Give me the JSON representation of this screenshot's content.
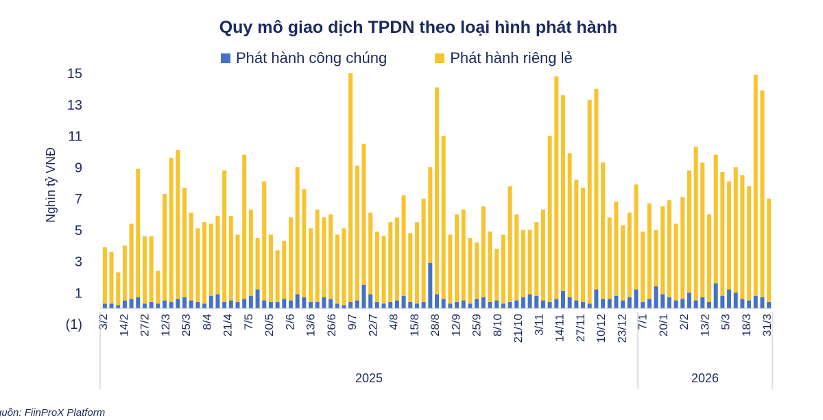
{
  "source_note": "guồn: FiinProX Platform",
  "colors": {
    "public": "#4472c4",
    "private": "#f7c32e",
    "text": "#1b2a5e",
    "axis": "#bfbfbf"
  },
  "chart_data": {
    "type": "bar",
    "stacked": true,
    "title": "Quy mô giao dịch TPDN theo loại hình phát hành",
    "ylabel": "Nghìn tỷ VNĐ",
    "xlabel": "",
    "ylim": [
      -1,
      15
    ],
    "yticks": [
      "(1)",
      "1",
      "3",
      "5",
      "7",
      "9",
      "11",
      "13",
      "15"
    ],
    "ytick_values": [
      -1,
      1,
      3,
      5,
      7,
      9,
      11,
      13,
      15
    ],
    "grid": false,
    "legend_position": "top",
    "x_tick_labels": [
      "3/2",
      "14/2",
      "27/2",
      "12/3",
      "25/3",
      "8/4",
      "21/4",
      "7/5",
      "20/5",
      "2/6",
      "13/6",
      "26/6",
      "9/7",
      "22/7",
      "4/8",
      "15/8",
      "28/8",
      "12/9",
      "25/9",
      "8/10",
      "21/10",
      "3/11",
      "14/11",
      "27/11",
      "10/12",
      "23/12",
      "7/1",
      "20/1",
      "2/2",
      "13/2",
      "5/3",
      "18/3",
      "31/3"
    ],
    "years": [
      {
        "label": "2025",
        "start_index": 0,
        "end_index": 25
      },
      {
        "label": "2026",
        "start_index": 26,
        "end_index": 32
      }
    ],
    "series": [
      {
        "name": "Phát hành công chúng",
        "color": "#4472c4",
        "values": [
          0.3,
          0.3,
          0.2,
          0.5,
          0.6,
          0.7,
          0.3,
          0.4,
          0.3,
          0.5,
          0.4,
          0.6,
          0.7,
          0.5,
          0.4,
          0.3,
          0.8,
          0.9,
          0.4,
          0.5,
          0.4,
          0.6,
          0.8,
          1.2,
          0.5,
          0.4,
          0.4,
          0.6,
          0.5,
          0.9,
          0.7,
          0.4,
          0.4,
          0.7,
          0.6,
          0.3,
          0.2,
          0.4,
          0.5,
          1.5,
          0.9,
          0.4,
          0.3,
          0.4,
          0.5,
          0.8,
          0.4,
          0.3,
          0.4,
          2.9,
          0.9,
          0.6,
          0.3,
          0.4,
          0.5,
          0.3,
          0.6,
          0.7,
          0.4,
          0.5,
          0.3,
          0.4,
          0.5,
          0.7,
          0.9,
          0.8,
          0.5,
          0.4,
          0.6,
          1.1,
          0.7,
          0.5,
          0.4,
          0.3,
          1.2,
          0.6,
          0.6,
          0.8,
          0.5,
          0.7,
          1.2,
          0.4,
          0.6,
          1.4,
          0.9,
          0.7,
          0.5,
          0.6,
          1.0,
          0.5,
          0.7,
          0.4,
          1.6,
          0.8,
          1.2,
          1.0,
          0.6,
          0.5,
          0.8,
          0.7,
          0.4
        ]
      },
      {
        "name": "Phát hành riêng lẻ",
        "color": "#f7c32e",
        "values": [
          3.6,
          3.3,
          2.1,
          3.5,
          4.8,
          8.2,
          4.3,
          4.2,
          2.1,
          6.8,
          9.2,
          9.5,
          7.0,
          5.6,
          4.7,
          5.2,
          4.6,
          5.0,
          8.4,
          5.4,
          4.3,
          9.2,
          5.5,
          3.3,
          7.6,
          4.3,
          3.3,
          3.7,
          5.3,
          8.1,
          6.9,
          4.7,
          5.9,
          5.1,
          5.4,
          4.4,
          4.9,
          14.6,
          8.6,
          9.0,
          5.2,
          4.5,
          4.3,
          5.1,
          5.3,
          6.4,
          4.4,
          5.2,
          6.6,
          6.1,
          13.2,
          10.4,
          4.4,
          5.6,
          5.8,
          4.2,
          3.6,
          5.8,
          4.5,
          3.3,
          4.4,
          7.4,
          5.5,
          4.3,
          4.1,
          4.7,
          5.8,
          10.6,
          14.2,
          12.5,
          9.2,
          7.7,
          7.3,
          13.0,
          12.8,
          8.7,
          5.2,
          6.0,
          4.8,
          5.4,
          6.7,
          4.5,
          6.1,
          3.6,
          5.6,
          6.2,
          4.9,
          6.5,
          7.8,
          9.8,
          8.6,
          5.6,
          8.2,
          7.9,
          6.9,
          8.0,
          7.9,
          7.3,
          14.1,
          13.2,
          6.6
        ]
      }
    ]
  }
}
